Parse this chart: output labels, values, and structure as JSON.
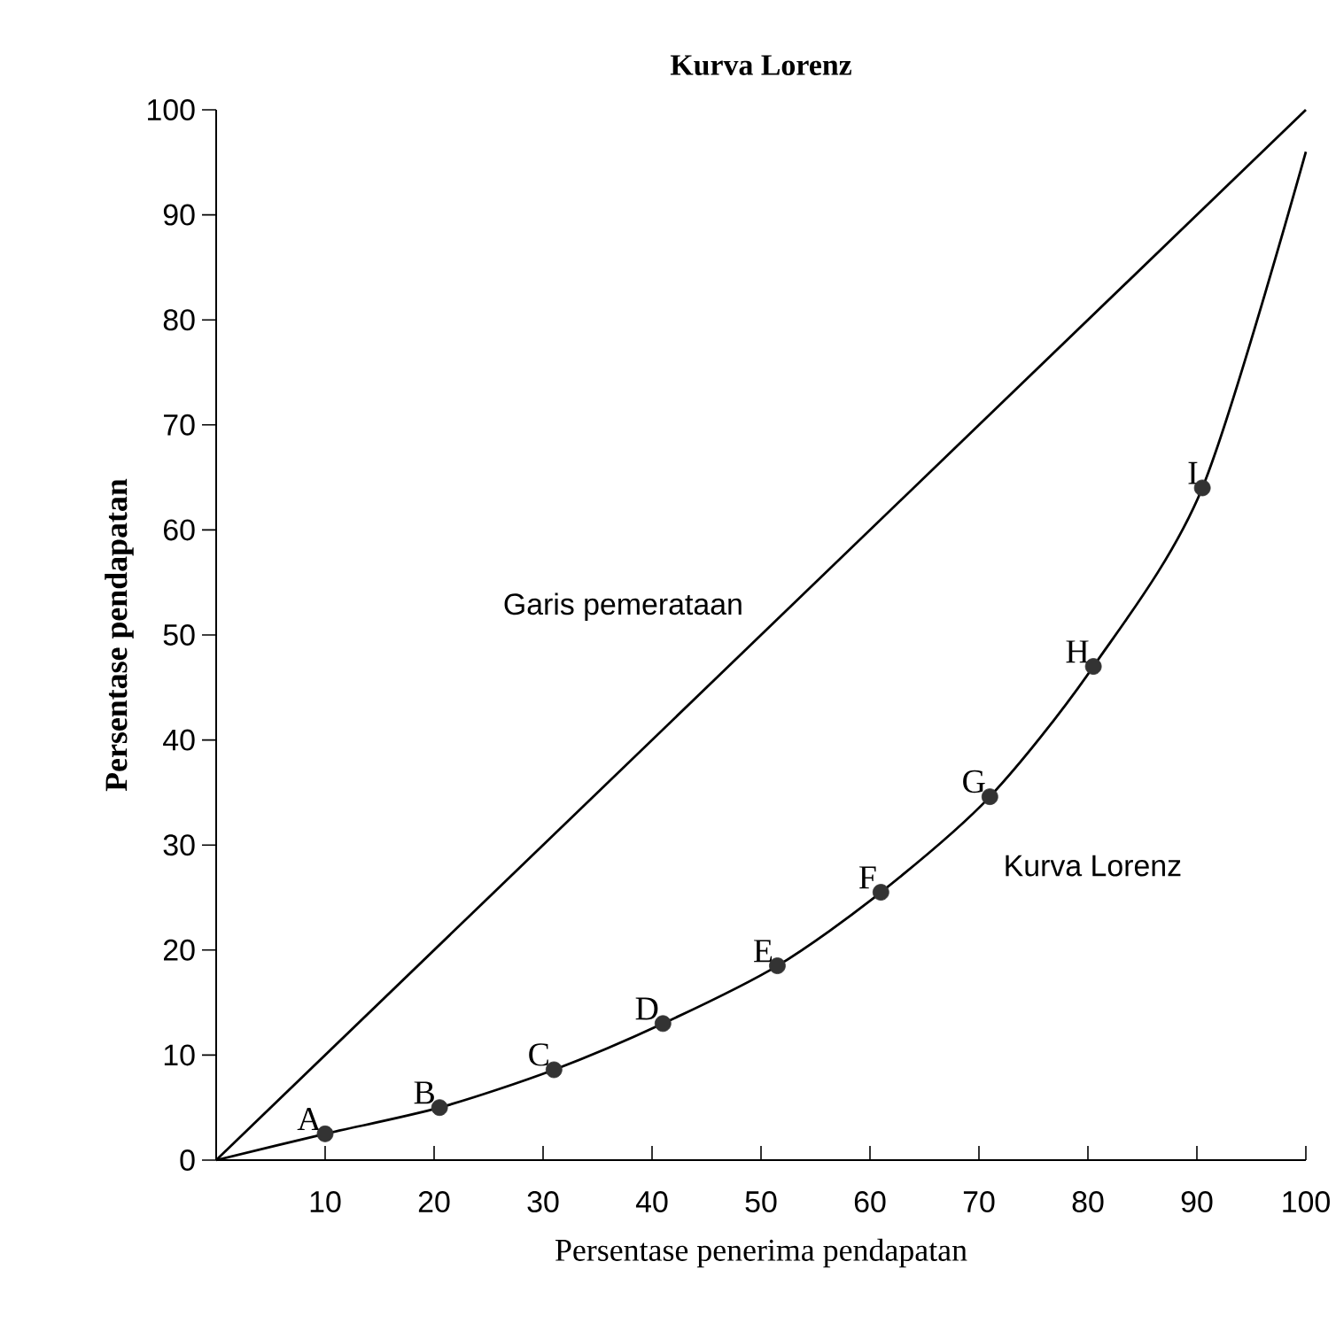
{
  "chart_data": {
    "type": "line",
    "title": "Kurva Lorenz",
    "xlabel": "Persentase penerima pendapatan",
    "ylabel": "Persentase pendapatan",
    "xlim": [
      0,
      100
    ],
    "ylim": [
      0,
      100
    ],
    "xticks": [
      10,
      20,
      30,
      40,
      50,
      60,
      70,
      80,
      90,
      100
    ],
    "yticks": [
      0,
      10,
      20,
      30,
      40,
      50,
      60,
      70,
      80,
      90,
      100
    ],
    "series": [
      {
        "name": "Garis pemerataan",
        "color": "#000000",
        "line_style": "solid",
        "x": [
          0,
          100
        ],
        "values": [
          0,
          100
        ]
      },
      {
        "name": "Kurva Lorenz",
        "color": "#000000",
        "line_style": "solid",
        "x": [
          0,
          10,
          20.5,
          31,
          41,
          51.5,
          61,
          71,
          80.5,
          90.5,
          100
        ],
        "values": [
          0,
          2.5,
          5,
          8.6,
          13,
          18.5,
          25.5,
          34.6,
          47,
          64,
          96
        ]
      },
      {
        "type": "scatter",
        "color": "#333333",
        "marker": "circle",
        "x": [
          10,
          20.5,
          31,
          41,
          51.5,
          61,
          71,
          80.5,
          90.5
        ],
        "values": [
          2.5,
          5,
          8.6,
          13,
          18.5,
          25.5,
          34.6,
          47,
          64
        ]
      }
    ],
    "annotations": [
      {
        "text": "A",
        "x": 10,
        "y": 2.5
      },
      {
        "text": "B",
        "x": 20.5,
        "y": 5
      },
      {
        "text": "C",
        "x": 31,
        "y": 8.6
      },
      {
        "text": "D",
        "x": 41,
        "y": 13
      },
      {
        "text": "E",
        "x": 51.5,
        "y": 18.5
      },
      {
        "text": "F",
        "x": 61,
        "y": 25.5
      },
      {
        "text": "G",
        "x": 71,
        "y": 34.6
      },
      {
        "text": "H",
        "x": 80.5,
        "y": 47
      },
      {
        "text": "I",
        "x": 90.5,
        "y": 64
      }
    ]
  }
}
